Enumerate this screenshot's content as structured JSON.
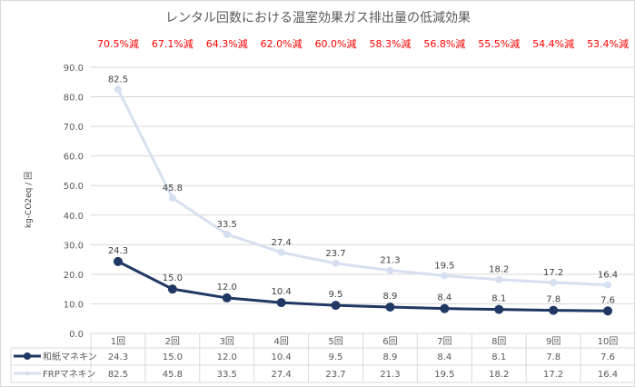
{
  "chart_data": {
    "type": "line",
    "title": "レンタル回数における温室効果ガス排出量の低減効果",
    "ylabel": "kg-CO2eq / 回",
    "xlabel": "",
    "ylim": [
      0,
      90
    ],
    "yticks": [
      "0.0",
      "10.0",
      "20.0",
      "30.0",
      "40.0",
      "50.0",
      "60.0",
      "70.0",
      "80.0",
      "90.0"
    ],
    "grid": true,
    "categories": [
      "1回",
      "2回",
      "3回",
      "4回",
      "5回",
      "6回",
      "7回",
      "8回",
      "9回",
      "10回"
    ],
    "series": [
      {
        "name": "和紙マネキン",
        "color": "#1f3864",
        "values": [
          24.3,
          15.0,
          12.0,
          10.4,
          9.5,
          8.9,
          8.4,
          8.1,
          7.8,
          7.6
        ],
        "labels": [
          "24.3",
          "15.0",
          "12.0",
          "10.4",
          "9.5",
          "8.9",
          "8.4",
          "8.1",
          "7.8",
          "7.6"
        ]
      },
      {
        "name": "FRPマネキン",
        "color": "#d6e0f0",
        "values": [
          82.5,
          45.8,
          33.5,
          27.4,
          23.7,
          21.3,
          19.5,
          18.2,
          17.2,
          16.4
        ],
        "labels": [
          "82.5",
          "45.8",
          "33.5",
          "27.4",
          "23.7",
          "21.3",
          "19.5",
          "18.2",
          "17.2",
          "16.4"
        ]
      }
    ],
    "annotations": [
      "70.5%減",
      "67.1%減",
      "64.3%減",
      "62.0%減",
      "60.0%減",
      "58.3%減",
      "56.8%減",
      "55.5%減",
      "54.4%減",
      "53.4%減"
    ],
    "annotation_color": "#ff0000",
    "legend": "data-table"
  }
}
